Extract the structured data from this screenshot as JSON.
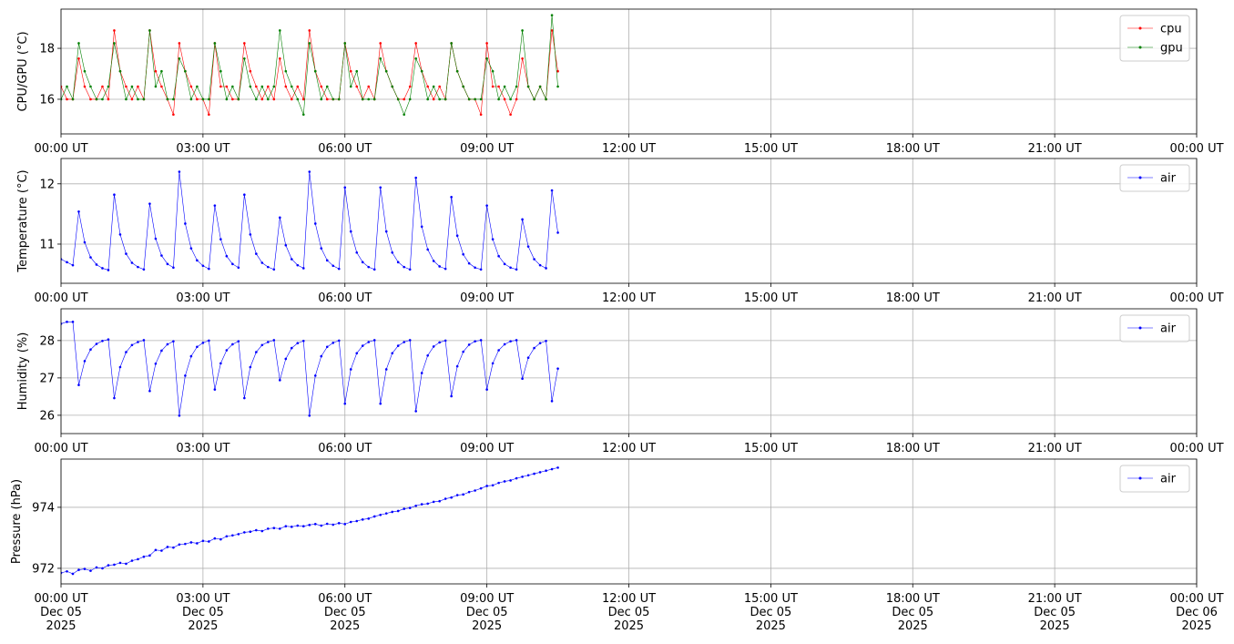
{
  "chart_data": [
    {
      "type": "line",
      "ylabel": "CPU/GPU (°C)",
      "grid": true,
      "legend": "upper right",
      "x": [
        0,
        0.125,
        0.25,
        0.375,
        0.5,
        0.625,
        0.75,
        0.875,
        1,
        1.125,
        1.25,
        1.375,
        1.5,
        1.625,
        1.75,
        1.875,
        2,
        2.125,
        2.25,
        2.375,
        2.5,
        2.625,
        2.75,
        2.875,
        3,
        3.125,
        3.25,
        3.375,
        3.5,
        3.625,
        3.75,
        3.875,
        4,
        4.125,
        4.25,
        4.375,
        4.5,
        4.625,
        4.75,
        4.875,
        5,
        5.125,
        5.25,
        5.375,
        5.5,
        5.625,
        5.75,
        5.875,
        6,
        6.125,
        6.25,
        6.375,
        6.5,
        6.625,
        6.75,
        6.875,
        7,
        7.125,
        7.25,
        7.375,
        7.5,
        7.625,
        7.75,
        7.875,
        8,
        8.125,
        8.25,
        8.375,
        8.5,
        8.625,
        8.75,
        8.875,
        9,
        9.125,
        9.25,
        9.375,
        9.5,
        9.625,
        9.75,
        9.875,
        10,
        10.125,
        10.25,
        10.375,
        10.5
      ],
      "xlim": [
        0,
        24
      ],
      "xticks": [
        {
          "value": 0,
          "label": "00:00 UT"
        },
        {
          "value": 3,
          "label": "03:00 UT"
        },
        {
          "value": 6,
          "label": "06:00 UT"
        },
        {
          "value": 9,
          "label": "09:00 UT"
        },
        {
          "value": 12,
          "label": "12:00 UT"
        },
        {
          "value": 15,
          "label": "15:00 UT"
        },
        {
          "value": 18,
          "label": "18:00 UT"
        },
        {
          "value": 21,
          "label": "21:00 UT"
        },
        {
          "value": 24,
          "label": "00:00 UT"
        }
      ],
      "ylim": [
        14.64,
        19.54
      ],
      "yticks": [
        16,
        18
      ],
      "series": [
        {
          "name": "cpu",
          "color": "#ff0000",
          "values": [
            16.5,
            16.0,
            16.0,
            17.6,
            16.5,
            16.0,
            16.0,
            16.5,
            16.0,
            18.7,
            17.1,
            16.5,
            16.0,
            16.5,
            16.0,
            18.7,
            17.1,
            16.5,
            16.0,
            15.4,
            18.2,
            17.1,
            16.5,
            16.0,
            16.0,
            15.4,
            18.2,
            16.5,
            16.5,
            16.0,
            16.0,
            18.2,
            17.1,
            16.5,
            16.0,
            16.5,
            16.0,
            17.6,
            16.5,
            16.0,
            16.5,
            16.0,
            18.7,
            17.1,
            16.5,
            16.0,
            16.0,
            16.0,
            18.2,
            17.1,
            16.5,
            16.0,
            16.5,
            16.0,
            18.2,
            17.1,
            16.5,
            16.0,
            16.0,
            16.5,
            18.2,
            17.1,
            16.5,
            16.0,
            16.5,
            16.0,
            18.2,
            17.1,
            16.5,
            16.0,
            16.0,
            15.4,
            18.2,
            16.5,
            16.5,
            16.0,
            15.4,
            16.0,
            17.6,
            16.5,
            16.0,
            16.5,
            16.0,
            18.7,
            17.1
          ]
        },
        {
          "name": "gpu",
          "color": "#008000",
          "values": [
            16.0,
            16.5,
            16.0,
            18.2,
            17.1,
            16.5,
            16.0,
            16.0,
            16.5,
            18.2,
            17.1,
            16.0,
            16.5,
            16.0,
            16.0,
            18.7,
            16.5,
            17.1,
            16.0,
            16.0,
            17.6,
            17.1,
            16.0,
            16.5,
            16.0,
            16.0,
            18.2,
            17.1,
            16.0,
            16.5,
            16.0,
            17.6,
            16.5,
            16.0,
            16.5,
            16.0,
            16.5,
            18.7,
            17.1,
            16.5,
            16.0,
            15.4,
            18.2,
            17.1,
            16.0,
            16.5,
            16.0,
            16.0,
            18.2,
            16.5,
            17.1,
            16.0,
            16.0,
            16.0,
            17.6,
            17.1,
            16.5,
            16.0,
            15.4,
            16.0,
            17.6,
            17.1,
            16.0,
            16.5,
            16.0,
            16.0,
            18.2,
            17.1,
            16.5,
            16.0,
            16.0,
            16.0,
            17.6,
            17.1,
            16.0,
            16.5,
            16.0,
            16.5,
            18.7,
            16.5,
            16.0,
            16.5,
            16.0,
            19.3,
            16.5
          ]
        }
      ]
    },
    {
      "type": "line",
      "ylabel": "Temperature (°C)",
      "grid": true,
      "legend": "upper right",
      "x": [
        0,
        0.125,
        0.25,
        0.375,
        0.5,
        0.625,
        0.75,
        0.875,
        1,
        1.125,
        1.25,
        1.375,
        1.5,
        1.625,
        1.75,
        1.875,
        2,
        2.125,
        2.25,
        2.375,
        2.5,
        2.625,
        2.75,
        2.875,
        3,
        3.125,
        3.25,
        3.375,
        3.5,
        3.625,
        3.75,
        3.875,
        4,
        4.125,
        4.25,
        4.375,
        4.5,
        4.625,
        4.75,
        4.875,
        5,
        5.125,
        5.25,
        5.375,
        5.5,
        5.625,
        5.75,
        5.875,
        6,
        6.125,
        6.25,
        6.375,
        6.5,
        6.625,
        6.75,
        6.875,
        7,
        7.125,
        7.25,
        7.375,
        7.5,
        7.625,
        7.75,
        7.875,
        8,
        8.125,
        8.25,
        8.375,
        8.5,
        8.625,
        8.75,
        8.875,
        9,
        9.125,
        9.25,
        9.375,
        9.5,
        9.625,
        9.75,
        9.875,
        10,
        10.125,
        10.25,
        10.375,
        10.5
      ],
      "xlim": [
        0,
        24
      ],
      "xticks": [
        {
          "value": 0,
          "label": "00:00 UT"
        },
        {
          "value": 3,
          "label": "03:00 UT"
        },
        {
          "value": 6,
          "label": "06:00 UT"
        },
        {
          "value": 9,
          "label": "09:00 UT"
        },
        {
          "value": 12,
          "label": "12:00 UT"
        },
        {
          "value": 15,
          "label": "15:00 UT"
        },
        {
          "value": 18,
          "label": "18:00 UT"
        },
        {
          "value": 21,
          "label": "21:00 UT"
        },
        {
          "value": 24,
          "label": "00:00 UT"
        }
      ],
      "ylim": [
        10.35,
        12.42
      ],
      "yticks": [
        11,
        12
      ],
      "series": [
        {
          "name": "air",
          "color": "#0000ff",
          "values": [
            10.75,
            10.7,
            10.65,
            11.54,
            11.03,
            10.78,
            10.66,
            10.6,
            10.57,
            11.82,
            11.16,
            10.84,
            10.69,
            10.62,
            10.58,
            11.67,
            11.09,
            10.81,
            10.67,
            10.61,
            12.2,
            11.34,
            10.93,
            10.73,
            10.64,
            10.59,
            11.64,
            11.08,
            10.8,
            10.67,
            10.61,
            11.82,
            11.16,
            10.84,
            10.69,
            10.62,
            10.58,
            11.44,
            10.98,
            10.75,
            10.65,
            10.6,
            12.2,
            11.34,
            10.93,
            10.73,
            10.64,
            10.59,
            11.94,
            11.21,
            10.86,
            10.7,
            10.62,
            10.58,
            11.94,
            11.21,
            10.86,
            10.7,
            10.62,
            10.58,
            12.1,
            11.29,
            10.91,
            10.72,
            10.63,
            10.59,
            11.78,
            11.14,
            10.83,
            10.68,
            10.61,
            10.58,
            11.64,
            11.08,
            10.8,
            10.67,
            10.61,
            10.58,
            11.41,
            10.96,
            10.75,
            10.65,
            10.6,
            11.89,
            11.19
          ]
        }
      ]
    },
    {
      "type": "line",
      "ylabel": "Humidity (%)",
      "grid": true,
      "legend": "upper right",
      "x": [
        0,
        0.125,
        0.25,
        0.375,
        0.5,
        0.625,
        0.75,
        0.875,
        1,
        1.125,
        1.25,
        1.375,
        1.5,
        1.625,
        1.75,
        1.875,
        2,
        2.125,
        2.25,
        2.375,
        2.5,
        2.625,
        2.75,
        2.875,
        3,
        3.125,
        3.25,
        3.375,
        3.5,
        3.625,
        3.75,
        3.875,
        4,
        4.125,
        4.25,
        4.375,
        4.5,
        4.625,
        4.75,
        4.875,
        5,
        5.125,
        5.25,
        5.375,
        5.5,
        5.625,
        5.75,
        5.875,
        6,
        6.125,
        6.25,
        6.375,
        6.5,
        6.625,
        6.75,
        6.875,
        7,
        7.125,
        7.25,
        7.375,
        7.5,
        7.625,
        7.75,
        7.875,
        8,
        8.125,
        8.25,
        8.375,
        8.5,
        8.625,
        8.75,
        8.875,
        9,
        9.125,
        9.25,
        9.375,
        9.5,
        9.625,
        9.75,
        9.875,
        10,
        10.125,
        10.25,
        10.375,
        10.5
      ],
      "xlim": [
        0,
        24
      ],
      "xticks": [
        {
          "value": 0,
          "label": "00:00 UT"
        },
        {
          "value": 3,
          "label": "03:00 UT"
        },
        {
          "value": 6,
          "label": "06:00 UT"
        },
        {
          "value": 9,
          "label": "09:00 UT"
        },
        {
          "value": 12,
          "label": "12:00 UT"
        },
        {
          "value": 15,
          "label": "15:00 UT"
        },
        {
          "value": 18,
          "label": "18:00 UT"
        },
        {
          "value": 21,
          "label": "21:00 UT"
        },
        {
          "value": 24,
          "label": "00:00 UT"
        }
      ],
      "ylim": [
        25.51,
        28.85
      ],
      "yticks": [
        26,
        27,
        28
      ],
      "series": [
        {
          "name": "air",
          "color": "#0000ff",
          "values": [
            28.45,
            28.5,
            28.5,
            26.81,
            27.45,
            27.76,
            27.91,
            27.99,
            28.03,
            26.46,
            27.29,
            27.69,
            27.88,
            27.96,
            28.01,
            26.65,
            27.38,
            27.73,
            27.9,
            27.98,
            25.99,
            27.06,
            27.58,
            27.83,
            27.94,
            28.0,
            26.69,
            27.39,
            27.74,
            27.9,
            27.98,
            26.46,
            27.29,
            27.69,
            27.88,
            27.96,
            28.01,
            26.94,
            27.51,
            27.8,
            27.93,
            27.99,
            25.99,
            27.06,
            27.58,
            27.83,
            27.94,
            28.0,
            26.31,
            27.23,
            27.66,
            27.86,
            27.96,
            28.01,
            26.31,
            27.23,
            27.66,
            27.86,
            27.96,
            28.01,
            26.11,
            27.13,
            27.6,
            27.84,
            27.95,
            28.0,
            26.51,
            27.31,
            27.7,
            27.89,
            27.98,
            28.01,
            26.69,
            27.39,
            27.74,
            27.9,
            27.98,
            28.01,
            26.98,
            27.54,
            27.8,
            27.93,
            27.99,
            26.38,
            27.25
          ]
        }
      ]
    },
    {
      "type": "line",
      "ylabel": "Pressure (hPa)",
      "grid": true,
      "legend": "upper right",
      "x": [
        0,
        0.125,
        0.25,
        0.375,
        0.5,
        0.625,
        0.75,
        0.875,
        1,
        1.125,
        1.25,
        1.375,
        1.5,
        1.625,
        1.75,
        1.875,
        2,
        2.125,
        2.25,
        2.375,
        2.5,
        2.625,
        2.75,
        2.875,
        3,
        3.125,
        3.25,
        3.375,
        3.5,
        3.625,
        3.75,
        3.875,
        4,
        4.125,
        4.25,
        4.375,
        4.5,
        4.625,
        4.75,
        4.875,
        5,
        5.125,
        5.25,
        5.375,
        5.5,
        5.625,
        5.75,
        5.875,
        6,
        6.125,
        6.25,
        6.375,
        6.5,
        6.625,
        6.75,
        6.875,
        7,
        7.125,
        7.25,
        7.375,
        7.5,
        7.625,
        7.75,
        7.875,
        8,
        8.125,
        8.25,
        8.375,
        8.5,
        8.625,
        8.75,
        8.875,
        9,
        9.125,
        9.25,
        9.375,
        9.5,
        9.625,
        9.75,
        9.875,
        10,
        10.125,
        10.25,
        10.375,
        10.5
      ],
      "xlim": [
        0,
        24
      ],
      "xticks": [
        {
          "value": 0,
          "label": "00:00 UT\nDec 05\n2025"
        },
        {
          "value": 3,
          "label": "03:00 UT\nDec 05\n2025"
        },
        {
          "value": 6,
          "label": "06:00 UT\nDec 05\n2025"
        },
        {
          "value": 9,
          "label": "09:00 UT\nDec 05\n2025"
        },
        {
          "value": 12,
          "label": "12:00 UT\nDec 05\n2025"
        },
        {
          "value": 15,
          "label": "15:00 UT\nDec 05\n2025"
        },
        {
          "value": 18,
          "label": "18:00 UT\nDec 05\n2025"
        },
        {
          "value": 21,
          "label": "21:00 UT\nDec 05\n2025"
        },
        {
          "value": 24,
          "label": "00:00 UT\nDec 06\n2025"
        }
      ],
      "ylim": [
        971.49,
        975.58
      ],
      "yticks": [
        972,
        974
      ],
      "series": [
        {
          "name": "air",
          "color": "#0000ff",
          "values": [
            971.85,
            971.9,
            971.82,
            971.95,
            971.98,
            971.92,
            972.03,
            972.0,
            972.1,
            972.12,
            972.18,
            972.15,
            972.25,
            972.3,
            972.38,
            972.42,
            972.6,
            972.58,
            972.7,
            972.68,
            972.78,
            972.8,
            972.85,
            972.82,
            972.9,
            972.88,
            972.98,
            972.95,
            973.05,
            973.08,
            973.12,
            973.18,
            973.2,
            973.25,
            973.22,
            973.3,
            973.32,
            973.3,
            973.38,
            973.36,
            973.4,
            973.38,
            973.42,
            973.45,
            973.4,
            973.46,
            973.43,
            973.48,
            973.45,
            973.52,
            973.55,
            973.6,
            973.63,
            973.7,
            973.75,
            973.8,
            973.85,
            973.88,
            973.95,
            973.98,
            974.05,
            974.1,
            974.12,
            974.18,
            974.2,
            974.28,
            974.32,
            974.4,
            974.42,
            974.5,
            974.55,
            974.62,
            974.7,
            974.72,
            974.8,
            974.85,
            974.88,
            974.95,
            975.0,
            975.05,
            975.1,
            975.15,
            975.2,
            975.25,
            975.3
          ]
        }
      ]
    }
  ]
}
